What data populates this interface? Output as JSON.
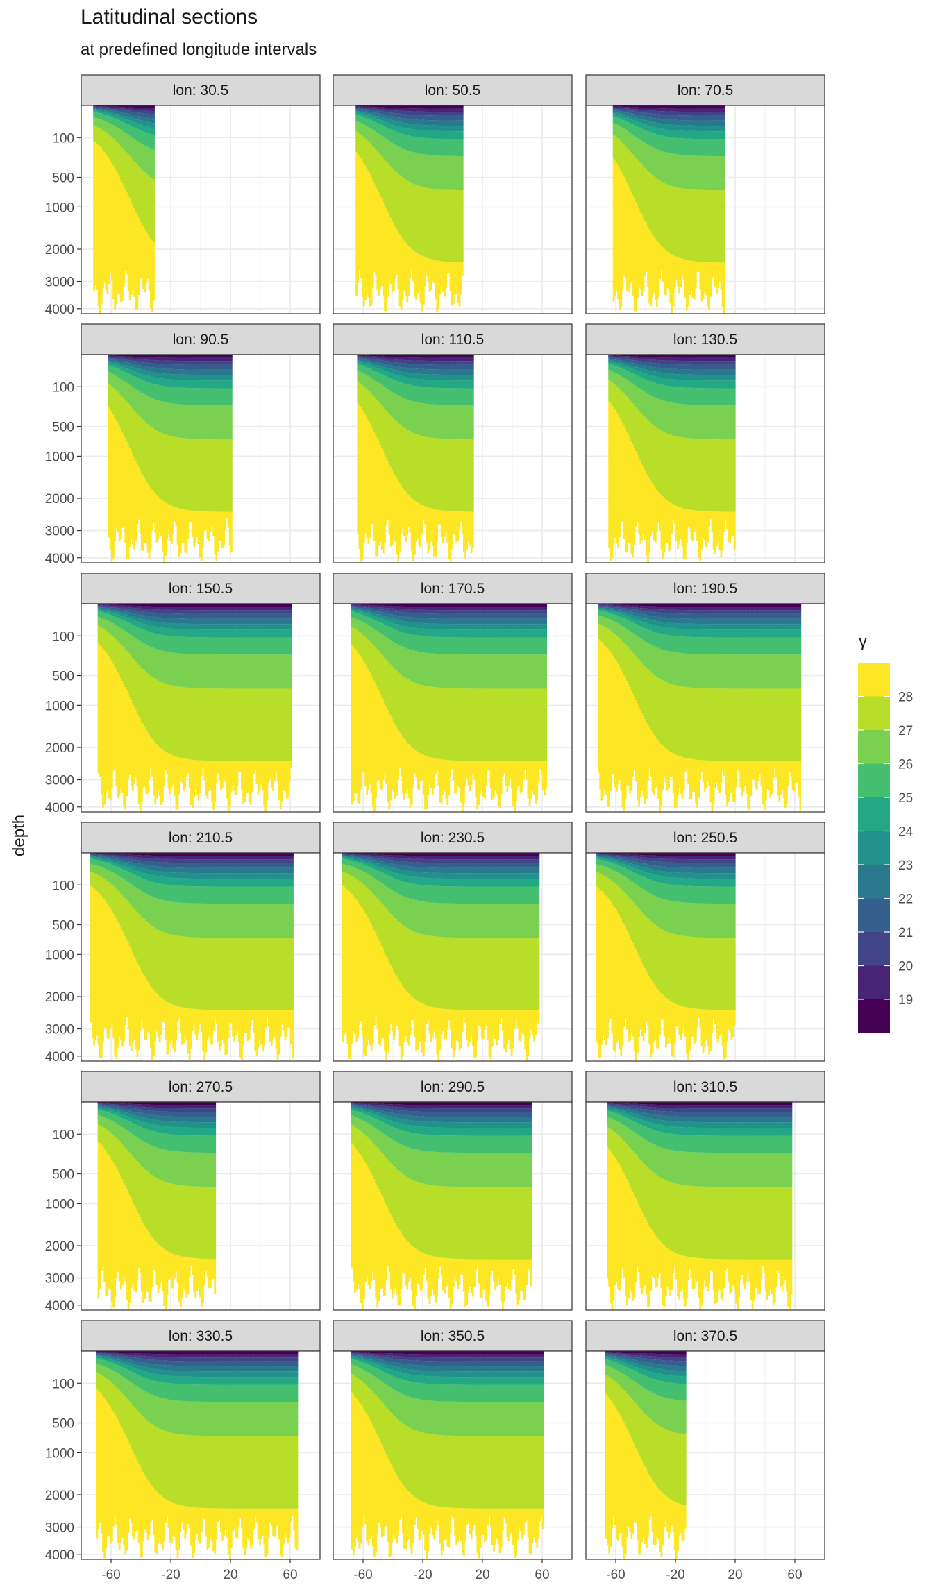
{
  "title": "Latitudinal sections",
  "subtitle": "at predefined longitude intervals",
  "chart_data": {
    "type": "heatmap",
    "title": "Latitudinal sections",
    "subtitle": "at predefined longitude intervals",
    "xlabel": "",
    "ylabel": "depth",
    "facet_var": "lon",
    "panels": [
      "lon: 30.5",
      "lon: 50.5",
      "lon: 70.5",
      "lon: 90.5",
      "lon: 110.5",
      "lon: 130.5",
      "lon: 150.5",
      "lon: 170.5",
      "lon: 190.5",
      "lon: 210.5",
      "lon: 230.5",
      "lon: 250.5",
      "lon: 270.5",
      "lon: 290.5",
      "lon: 310.5",
      "lon: 330.5",
      "lon: 350.5",
      "lon: 370.5"
    ],
    "lat_extent": [
      [
        -72,
        -31
      ],
      [
        -65,
        7
      ],
      [
        -62,
        13
      ],
      [
        -62,
        21
      ],
      [
        -64,
        14
      ],
      [
        -65,
        20
      ],
      [
        -69,
        61
      ],
      [
        -68,
        63
      ],
      [
        -72,
        64
      ],
      [
        -74,
        62
      ],
      [
        -74,
        58
      ],
      [
        -73,
        20
      ],
      [
        -69,
        10
      ],
      [
        -68,
        53
      ],
      [
        -66,
        58
      ],
      [
        -70,
        65
      ],
      [
        -68,
        61
      ],
      [
        -67,
        -13
      ]
    ],
    "x_ticks": [
      -60,
      -20,
      20,
      60
    ],
    "xlim": [
      -80,
      80
    ],
    "y_ticks": [
      100,
      500,
      1000,
      2000,
      3000,
      4000
    ],
    "y_transform": "sqrt",
    "ylim": [
      0,
      4200
    ],
    "legend": {
      "title": "γ",
      "labels": [
        "28",
        "27",
        "26",
        "25",
        "24",
        "23",
        "22",
        "21",
        "20",
        "19"
      ],
      "colors": [
        "#fde725",
        "#b8de29",
        "#7ad151",
        "#44bf70",
        "#22a884",
        "#21918c",
        "#2a788e",
        "#355f8d",
        "#414487",
        "#482475",
        "#440154"
      ]
    }
  }
}
